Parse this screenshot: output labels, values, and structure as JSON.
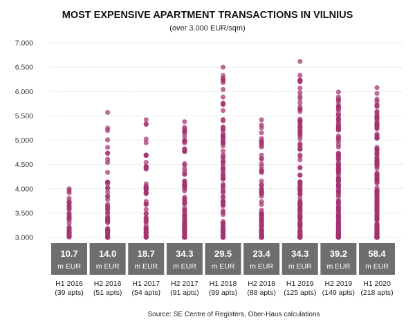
{
  "chart_data": {
    "type": "scatter",
    "title": "MOST EXPENSIVE APARTMENT TRANSACTIONS IN VILNIUS",
    "subtitle": "(over 3.000 EUR/sqm)",
    "source": "Source: SE Centre of Registers, Ober-Haus calculations",
    "ylim": [
      3000,
      7000
    ],
    "yticks": [
      {
        "value": 3000,
        "label": "3.000"
      },
      {
        "value": 3500,
        "label": "3.500"
      },
      {
        "value": 4000,
        "label": "4.000"
      },
      {
        "value": 4500,
        "label": "4.500"
      },
      {
        "value": 5000,
        "label": "5.000"
      },
      {
        "value": 5500,
        "label": "5.500"
      },
      {
        "value": 6000,
        "label": "6.000"
      },
      {
        "value": 6500,
        "label": "6.500"
      },
      {
        "value": 7000,
        "label": "7.000"
      }
    ],
    "grid": true,
    "point_color": "#a3336f",
    "box_color": "#6e6e6e",
    "categories": [
      {
        "period": "H1 2016",
        "apts_label": "(39 apts)",
        "total": "10.7",
        "unit": "m EUR",
        "y_max": 4000
      },
      {
        "period": "H2 2016",
        "apts_label": "(51 apts)",
        "total": "14.0",
        "unit": "m EUR",
        "y_max": 5570
      },
      {
        "period": "H1 2017",
        "apts_label": "(54 apts)",
        "total": "18.7",
        "unit": "m EUR",
        "y_max": 5420
      },
      {
        "period": "H2 2017",
        "apts_label": "(91 apts)",
        "total": "34.3",
        "unit": "m EUR",
        "y_max": 5380
      },
      {
        "period": "H1 2018",
        "apts_label": "(99 apts)",
        "total": "29.5",
        "unit": "m EUR",
        "y_max": 6500
      },
      {
        "period": "H2 2018",
        "apts_label": "(88 apts)",
        "total": "23.4",
        "unit": "m EUR",
        "y_max": 5420
      },
      {
        "period": "H1 2019",
        "apts_label": "(125 apts)",
        "total": "34.3",
        "unit": "m EUR",
        "y_max": 6620
      },
      {
        "period": "H2 2019",
        "apts_label": "(149 apts)",
        "total": "39.2",
        "unit": "m EUR",
        "y_max": 5990
      },
      {
        "period": "H1 2020",
        "apts_label": "(218 apts)",
        "total": "58.4",
        "unit": "m EUR",
        "y_max": 6080
      }
    ]
  }
}
